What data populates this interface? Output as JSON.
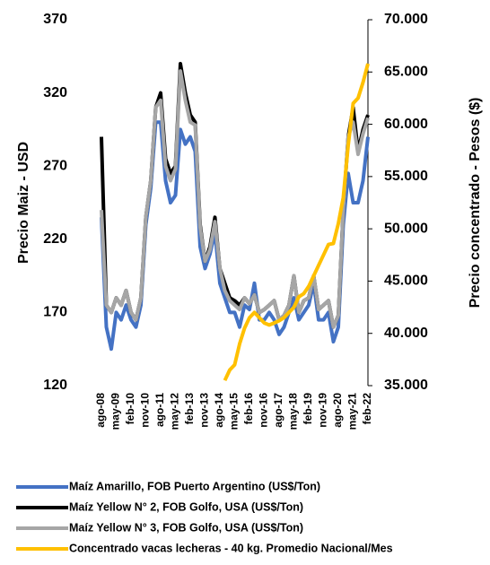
{
  "chart_data": {
    "type": "line",
    "y_label": "Precio Maiz - USD",
    "y2_label": "Precio concentrado - Pesos ($)",
    "categories": [
      "ago-08",
      null,
      null,
      "may-09",
      null,
      null,
      "feb-10",
      null,
      null,
      "nov-10",
      null,
      null,
      "ago-11",
      null,
      null,
      "may-12",
      null,
      null,
      "feb-13",
      null,
      null,
      "nov-13",
      null,
      null,
      "ago-14",
      null,
      null,
      "may-15",
      null,
      null,
      "feb-16",
      null,
      null,
      "nov-16",
      null,
      null,
      "ago-17",
      null,
      null,
      "may-18",
      null,
      null,
      "feb-19",
      null,
      null,
      "nov-19",
      null,
      null,
      "ago-20",
      null,
      null,
      "may-21",
      null,
      null,
      "feb-22"
    ],
    "ylim": [
      120,
      370
    ],
    "yticks": [
      120,
      170,
      220,
      270,
      320,
      370
    ],
    "y2lim": [
      35000,
      70000
    ],
    "y2ticks": [
      {
        "value": 35000,
        "label": "35.000"
      },
      {
        "value": 40000,
        "label": "40.000"
      },
      {
        "value": 45000,
        "label": "45.000"
      },
      {
        "value": 50000,
        "label": "50.000"
      },
      {
        "value": 55000,
        "label": "55.000"
      },
      {
        "value": 60000,
        "label": "60.000"
      },
      {
        "value": 65000,
        "label": "65.000"
      },
      {
        "value": 70000,
        "label": "70.000"
      }
    ],
    "series": [
      {
        "name": "Maíz Amarillo, FOB Puerto Argentino  (US$/Ton)",
        "color": "#4472c4",
        "values": [
          235,
          160,
          145,
          170,
          165,
          175,
          165,
          160,
          175,
          230,
          255,
          300,
          300,
          260,
          245,
          250,
          295,
          285,
          290,
          280,
          215,
          200,
          210,
          225,
          190,
          180,
          170,
          170,
          160,
          175,
          172,
          190,
          165,
          165,
          170,
          165,
          155,
          160,
          170,
          180,
          165,
          170,
          175,
          190,
          165,
          165,
          170,
          150,
          160,
          230,
          265,
          245,
          245,
          260,
          290
        ]
      },
      {
        "name": "Maíz Yellow N° 2, FOB Golfo, USA (US$/Ton)",
        "color": "#000000",
        "values": [
          290,
          175,
          170,
          180,
          175,
          185,
          170,
          165,
          180,
          235,
          260,
          310,
          320,
          275,
          265,
          270,
          340,
          320,
          305,
          300,
          230,
          205,
          215,
          235,
          200,
          190,
          180,
          178,
          175,
          180,
          176,
          182,
          170,
          172,
          175,
          178,
          165,
          168,
          175,
          195,
          170,
          178,
          180,
          195,
          172,
          175,
          178,
          160,
          168,
          240,
          290,
          310,
          280,
          295,
          305
        ]
      },
      {
        "name": "Maíz Yellow N° 3, FOB Golfo, USA (US$/Ton)",
        "color": "#a6a6a6",
        "values": [
          240,
          175,
          170,
          180,
          175,
          185,
          170,
          165,
          180,
          235,
          260,
          310,
          315,
          270,
          260,
          268,
          335,
          315,
          300,
          298,
          228,
          205,
          213,
          232,
          200,
          185,
          178,
          175,
          172,
          180,
          176,
          182,
          170,
          172,
          175,
          178,
          165,
          168,
          175,
          195,
          170,
          178,
          180,
          195,
          172,
          175,
          178,
          160,
          168,
          240,
          290,
          300,
          278,
          292,
          303
        ]
      },
      {
        "name": "Concentrado vacas lecheras - 40 kg. Promedio Nacional/Mes",
        "color": "#ffc000",
        "axis": "y2",
        "values": [
          null,
          null,
          null,
          null,
          null,
          null,
          null,
          null,
          null,
          null,
          null,
          null,
          null,
          null,
          null,
          null,
          null,
          null,
          null,
          null,
          null,
          null,
          null,
          null,
          null,
          35500,
          36500,
          37000,
          39000,
          40500,
          41500,
          42000,
          41500,
          41000,
          40800,
          41000,
          41200,
          41500,
          42000,
          42500,
          43500,
          43800,
          44500,
          45500,
          46500,
          47500,
          48500,
          48600,
          50500,
          53000,
          58000,
          62000,
          62500,
          64000,
          65800
        ]
      }
    ]
  }
}
